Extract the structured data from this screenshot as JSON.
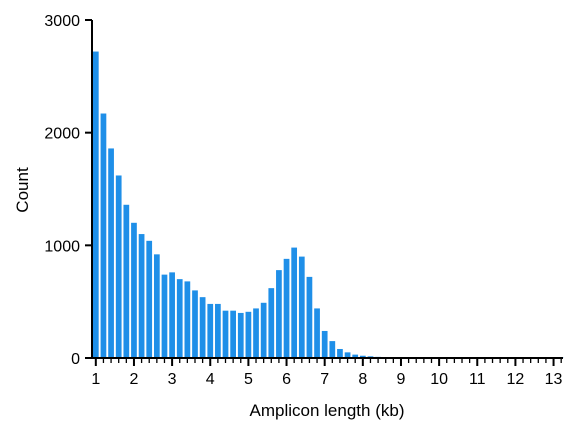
{
  "chart_data": {
    "type": "bar",
    "title": "",
    "xlabel": "Amplicon length (kb)",
    "ylabel": "Count",
    "ylim": [
      0,
      3000
    ],
    "xlim": [
      0.9,
      13.3
    ],
    "bar_width": 0.15,
    "color": "#1f8fe8",
    "grid": false,
    "legend": "none",
    "x_ticks": [
      "1",
      "2",
      "3",
      "4",
      "5",
      "6",
      "7",
      "8",
      "9",
      "10",
      "11",
      "12",
      "13"
    ],
    "x_tick_values": [
      1,
      2,
      3,
      4,
      5,
      6,
      7,
      8,
      9,
      10,
      11,
      12,
      13
    ],
    "y_ticks": [
      "0",
      "1000",
      "2000",
      "3000"
    ],
    "y_tick_values": [
      0,
      1000,
      2000,
      3000
    ],
    "x": [
      1.0,
      1.2,
      1.4,
      1.6,
      1.8,
      2.0,
      2.2,
      2.4,
      2.6,
      2.8,
      3.0,
      3.2,
      3.4,
      3.6,
      3.8,
      4.0,
      4.2,
      4.4,
      4.6,
      4.8,
      5.0,
      5.2,
      5.4,
      5.6,
      5.8,
      6.0,
      6.2,
      6.4,
      6.6,
      6.8,
      7.0,
      7.2,
      7.4,
      7.6,
      7.8,
      8.0,
      8.2,
      8.4,
      8.6,
      8.8,
      9.0,
      9.2,
      9.4,
      9.6,
      9.8,
      10.0,
      10.2,
      10.4,
      10.6,
      10.8,
      11.0,
      11.2,
      11.4,
      11.6,
      11.8,
      12.0,
      12.2,
      12.4,
      12.6,
      12.8,
      13.0,
      13.2
    ],
    "values": [
      2720,
      2170,
      1860,
      1620,
      1360,
      1200,
      1100,
      1040,
      920,
      740,
      760,
      700,
      680,
      600,
      540,
      480,
      480,
      420,
      420,
      400,
      410,
      440,
      490,
      620,
      780,
      880,
      980,
      900,
      720,
      440,
      240,
      150,
      80,
      50,
      30,
      20,
      15,
      10,
      8,
      6,
      5,
      5,
      4,
      4,
      3,
      3,
      3,
      2,
      2,
      2,
      2,
      2,
      2,
      2,
      2,
      2,
      2,
      2,
      2,
      2,
      2,
      2
    ]
  }
}
